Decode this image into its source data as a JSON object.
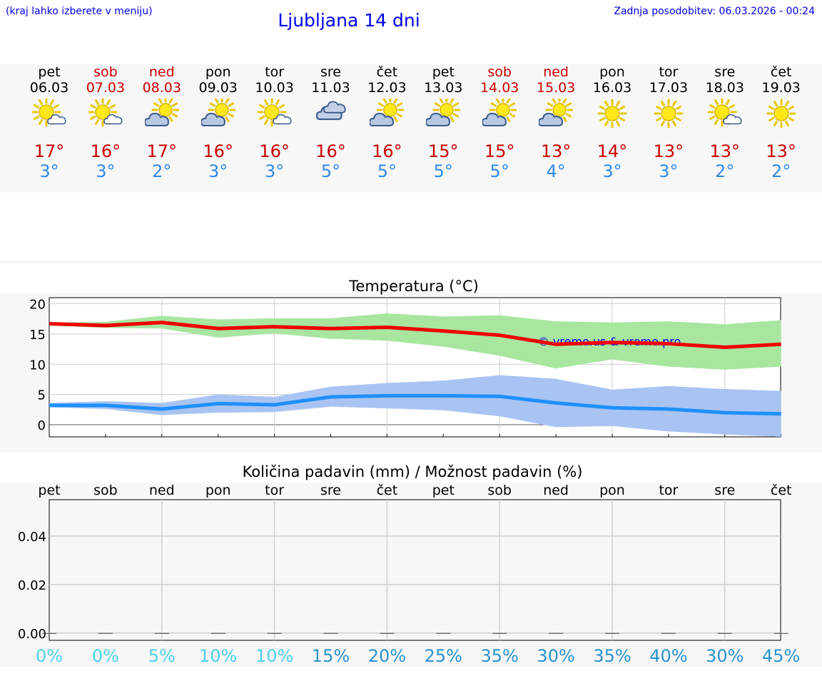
{
  "header": {
    "hint": "(kraj lahko izberete v meniju)",
    "title": "Ljubljana 14 dni",
    "updated": "Zadnja posodobitev: 06.03.2026 - 00:24"
  },
  "colors": {
    "link": "#0000ee",
    "weekend": "#cc0000",
    "max": "#ee0000",
    "min": "#1e90ff",
    "maxBand": "#a8e6a0",
    "minBand": "#a9c4f2"
  },
  "days": [
    {
      "name": "pet",
      "date": "06.03",
      "weekend": false,
      "icon": "sun-cloud-icon",
      "max": "17°",
      "min": "3°"
    },
    {
      "name": "sob",
      "date": "07.03",
      "weekend": true,
      "icon": "sun-cloud-icon",
      "max": "16°",
      "min": "3°"
    },
    {
      "name": "ned",
      "date": "08.03",
      "weekend": true,
      "icon": "cloud-sun-icon",
      "max": "17°",
      "min": "2°"
    },
    {
      "name": "pon",
      "date": "09.03",
      "weekend": false,
      "icon": "cloud-sun-icon",
      "max": "16°",
      "min": "3°"
    },
    {
      "name": "tor",
      "date": "10.03",
      "weekend": false,
      "icon": "sun-cloud-icon",
      "max": "16°",
      "min": "3°"
    },
    {
      "name": "sre",
      "date": "11.03",
      "weekend": false,
      "icon": "cloudy-icon",
      "max": "16°",
      "min": "5°"
    },
    {
      "name": "čet",
      "date": "12.03",
      "weekend": false,
      "icon": "cloud-sun-icon",
      "max": "16°",
      "min": "5°"
    },
    {
      "name": "pet",
      "date": "13.03",
      "weekend": false,
      "icon": "cloud-sun-icon",
      "max": "15°",
      "min": "5°"
    },
    {
      "name": "sob",
      "date": "14.03",
      "weekend": true,
      "icon": "cloud-sun-icon",
      "max": "15°",
      "min": "5°"
    },
    {
      "name": "ned",
      "date": "15.03",
      "weekend": true,
      "icon": "cloud-sun-icon",
      "max": "13°",
      "min": "4°"
    },
    {
      "name": "pon",
      "date": "16.03",
      "weekend": false,
      "icon": "sun-icon",
      "max": "14°",
      "min": "3°"
    },
    {
      "name": "tor",
      "date": "17.03",
      "weekend": false,
      "icon": "sun-icon",
      "max": "13°",
      "min": "3°"
    },
    {
      "name": "sre",
      "date": "18.03",
      "weekend": false,
      "icon": "sun-cloud-icon",
      "max": "13°",
      "min": "2°"
    },
    {
      "name": "čet",
      "date": "19.03",
      "weekend": false,
      "icon": "sun-icon",
      "max": "13°",
      "min": "2°"
    }
  ],
  "chart_data": [
    {
      "type": "line",
      "title": "Temperatura (°C)",
      "ylim": [
        -2,
        21
      ],
      "yticks": [
        0,
        5,
        10,
        15,
        20
      ],
      "grid": true,
      "watermark": "© vreme.us & vreme.pro",
      "x": [
        "pet",
        "sob",
        "ned",
        "pon",
        "tor",
        "sre",
        "čet",
        "pet",
        "sob",
        "ned",
        "pon",
        "tor",
        "sre",
        "čet"
      ],
      "series": [
        {
          "role": "max",
          "values": [
            16.7,
            16.4,
            16.9,
            15.9,
            16.2,
            15.9,
            16.1,
            15.5,
            14.8,
            13.3,
            13.6,
            13.4,
            12.8,
            13.3
          ],
          "upper": [
            16.9,
            17.0,
            18.0,
            17.4,
            17.6,
            17.6,
            18.4,
            17.9,
            18.1,
            17.1,
            16.9,
            17.1,
            16.6,
            17.3
          ],
          "lower": [
            16.4,
            16.0,
            15.9,
            14.4,
            15.1,
            14.2,
            13.9,
            12.9,
            11.4,
            9.3,
            10.8,
            9.6,
            9.1,
            9.6
          ]
        },
        {
          "role": "min",
          "values": [
            3.2,
            3.2,
            2.6,
            3.5,
            3.3,
            4.6,
            4.8,
            4.8,
            4.7,
            3.6,
            2.8,
            2.6,
            2.0,
            1.8
          ],
          "upper": [
            3.6,
            3.9,
            3.6,
            5.0,
            4.6,
            6.3,
            6.9,
            7.3,
            8.2,
            7.6,
            5.8,
            6.4,
            5.9,
            5.6
          ],
          "lower": [
            2.9,
            2.6,
            1.6,
            2.0,
            2.1,
            3.0,
            2.7,
            2.4,
            1.4,
            -0.4,
            -0.2,
            -1.1,
            -1.6,
            -2.0
          ]
        }
      ]
    },
    {
      "type": "bar",
      "title": "Količina padavin (mm) / Možnost padavin (%)",
      "ylim": [
        -0.003,
        0.055
      ],
      "yticks": [
        "0.00",
        "0.02",
        "0.04"
      ],
      "grid": true,
      "categories": [
        "pet",
        "sob",
        "ned",
        "pon",
        "tor",
        "sre",
        "čet",
        "pet",
        "sob",
        "ned",
        "pon",
        "tor",
        "sre",
        "čet"
      ],
      "values": [
        0,
        0,
        0,
        0,
        0,
        0,
        0,
        0,
        0,
        0,
        0,
        0,
        0,
        0
      ],
      "probability": [
        "0%",
        "0%",
        "5%",
        "10%",
        "10%",
        "15%",
        "20%",
        "25%",
        "35%",
        "30%",
        "35%",
        "40%",
        "30%",
        "45%"
      ]
    }
  ]
}
